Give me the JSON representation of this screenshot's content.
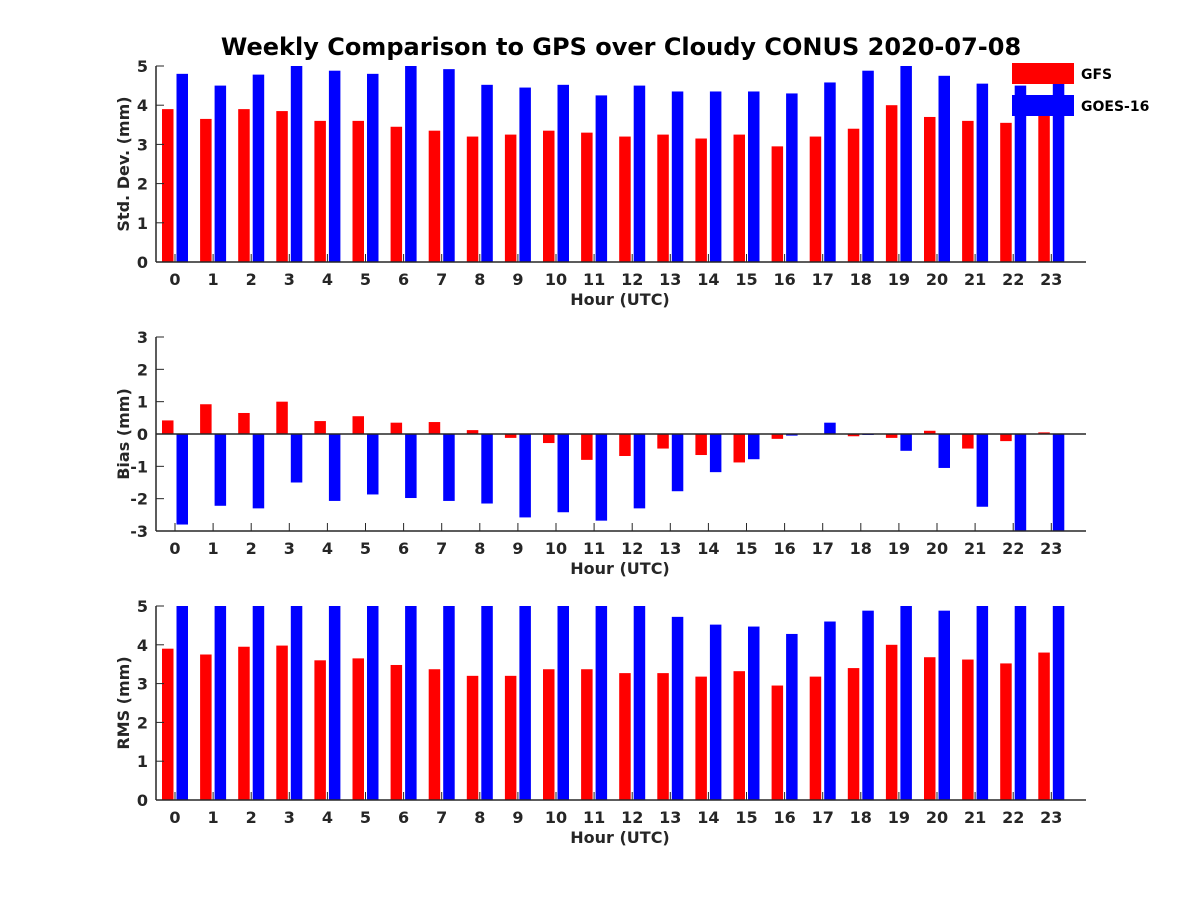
{
  "title": "Weekly Comparison to GPS over Cloudy CONUS 2020-07-08",
  "legend": [
    {
      "label": "GFS",
      "color": "#ff0000"
    },
    {
      "label": "GOES-16",
      "color": "#0000ff"
    }
  ],
  "chart_data": [
    {
      "type": "bar",
      "title": "Weekly Comparison to GPS over Cloudy CONUS 2020-07-08",
      "xlabel": "Hour (UTC)",
      "ylabel": "Std. Dev. (mm)",
      "ylim": [
        0,
        5
      ],
      "yticks": [
        0,
        1,
        2,
        3,
        4,
        5
      ],
      "categories": [
        "0",
        "1",
        "2",
        "3",
        "4",
        "5",
        "6",
        "7",
        "8",
        "9",
        "10",
        "11",
        "12",
        "13",
        "14",
        "15",
        "16",
        "17",
        "18",
        "19",
        "20",
        "21",
        "22",
        "23"
      ],
      "series": [
        {
          "name": "GFS",
          "color": "#ff0000",
          "values": [
            3.9,
            3.65,
            3.9,
            3.85,
            3.6,
            3.6,
            3.45,
            3.35,
            3.2,
            3.25,
            3.35,
            3.3,
            3.2,
            3.25,
            3.15,
            3.25,
            2.95,
            3.2,
            3.4,
            4.0,
            3.7,
            3.6,
            3.55,
            3.8
          ]
        },
        {
          "name": "GOES-16",
          "color": "#0000ff",
          "values": [
            4.8,
            4.5,
            4.78,
            5.0,
            4.88,
            4.8,
            5.0,
            4.92,
            4.52,
            4.45,
            4.52,
            4.25,
            4.5,
            4.35,
            4.35,
            4.35,
            4.3,
            4.58,
            4.88,
            5.0,
            4.75,
            4.55,
            4.5,
            4.6
          ]
        }
      ]
    },
    {
      "type": "bar",
      "xlabel": "Hour (UTC)",
      "ylabel": "Bias (mm)",
      "ylim": [
        -3,
        3
      ],
      "yticks": [
        -3,
        -2,
        -1,
        0,
        1,
        2,
        3
      ],
      "categories": [
        "0",
        "1",
        "2",
        "3",
        "4",
        "5",
        "6",
        "7",
        "8",
        "9",
        "10",
        "11",
        "12",
        "13",
        "14",
        "15",
        "16",
        "17",
        "18",
        "19",
        "20",
        "21",
        "22",
        "23"
      ],
      "series": [
        {
          "name": "GFS",
          "color": "#ff0000",
          "values": [
            0.42,
            0.92,
            0.65,
            1.0,
            0.4,
            0.55,
            0.35,
            0.37,
            0.12,
            -0.12,
            -0.28,
            -0.8,
            -0.68,
            -0.45,
            -0.65,
            -0.88,
            -0.15,
            0.0,
            -0.07,
            -0.12,
            0.1,
            -0.45,
            -0.22,
            0.05
          ]
        },
        {
          "name": "GOES-16",
          "color": "#0000ff",
          "values": [
            -2.8,
            -2.22,
            -2.3,
            -1.5,
            -2.07,
            -1.87,
            -1.98,
            -2.07,
            -2.15,
            -2.58,
            -2.42,
            -2.68,
            -2.3,
            -1.77,
            -1.18,
            -0.78,
            -0.05,
            0.35,
            -0.03,
            -0.52,
            -1.05,
            -2.25,
            -3.0,
            -3.0
          ]
        }
      ]
    },
    {
      "type": "bar",
      "xlabel": "Hour (UTC)",
      "ylabel": "RMS (mm)",
      "ylim": [
        0,
        5
      ],
      "yticks": [
        0,
        1,
        2,
        3,
        4,
        5
      ],
      "categories": [
        "0",
        "1",
        "2",
        "3",
        "4",
        "5",
        "6",
        "7",
        "8",
        "9",
        "10",
        "11",
        "12",
        "13",
        "14",
        "15",
        "16",
        "17",
        "18",
        "19",
        "20",
        "21",
        "22",
        "23"
      ],
      "series": [
        {
          "name": "GFS",
          "color": "#ff0000",
          "values": [
            3.9,
            3.75,
            3.95,
            3.98,
            3.6,
            3.65,
            3.48,
            3.37,
            3.2,
            3.2,
            3.37,
            3.37,
            3.27,
            3.27,
            3.18,
            3.32,
            2.95,
            3.18,
            3.4,
            4.0,
            3.68,
            3.62,
            3.52,
            3.8
          ]
        },
        {
          "name": "GOES-16",
          "color": "#0000ff",
          "values": [
            5.0,
            5.0,
            5.0,
            5.0,
            5.0,
            5.0,
            5.0,
            5.0,
            5.0,
            5.0,
            5.0,
            5.0,
            5.0,
            4.72,
            4.52,
            4.47,
            4.28,
            4.6,
            4.88,
            5.0,
            4.88,
            5.0,
            5.0,
            5.0
          ]
        }
      ]
    }
  ]
}
